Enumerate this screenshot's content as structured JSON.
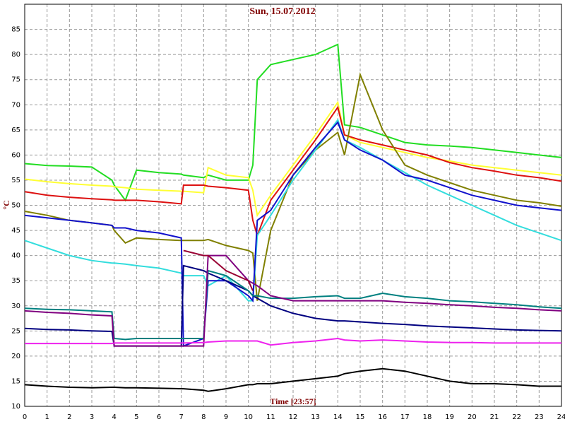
{
  "chart_data": {
    "type": "line",
    "title": "Sun, 15.07.2012",
    "x_label": "Time [23:57]",
    "y_label": "°C",
    "x": [
      0,
      1,
      2,
      3,
      3.9,
      4,
      4.5,
      5,
      6,
      7,
      7.1,
      8,
      8.2,
      9,
      10,
      10.2,
      10.4,
      11,
      12,
      13,
      14,
      14.3,
      15,
      16,
      17,
      18,
      19,
      20,
      21,
      22,
      23,
      24
    ],
    "xlim": [
      0,
      24
    ],
    "xticks": [
      0,
      1,
      2,
      3,
      4,
      5,
      6,
      7,
      8,
      9,
      10,
      11,
      12,
      13,
      14,
      15,
      16,
      17,
      18,
      19,
      20,
      21,
      22,
      23,
      24
    ],
    "ylim": [
      10,
      90
    ],
    "yticks": [
      10,
      15,
      20,
      25,
      30,
      35,
      40,
      45,
      50,
      55,
      60,
      65,
      70,
      75,
      80,
      85
    ],
    "grid": true,
    "series": [
      {
        "color": "#22dd22",
        "values": [
          58.3,
          57.9,
          57.8,
          57.6,
          55,
          54,
          51,
          57,
          56.5,
          56.2,
          56,
          55.5,
          56,
          55,
          55,
          58,
          75,
          78,
          79,
          80,
          82,
          66,
          65.5,
          64,
          62.5,
          62,
          61.8,
          61.5,
          61,
          60.5,
          60,
          59.5
        ]
      },
      {
        "color": "#ffff33",
        "values": [
          55.2,
          54.7,
          54.3,
          54,
          53.8,
          53.7,
          53.5,
          53.2,
          53,
          52.8,
          52.8,
          52.5,
          57.5,
          56,
          55.5,
          53,
          48,
          52,
          58,
          64,
          70.5,
          64,
          62.5,
          61.5,
          60.5,
          59.5,
          58.8,
          58,
          57.5,
          57,
          56.5,
          56
        ]
      },
      {
        "color": "#dd1111",
        "values": [
          52.7,
          52,
          51.6,
          51.3,
          51.1,
          51,
          51,
          51,
          50.7,
          50.3,
          54,
          54,
          53.8,
          53.5,
          53,
          47,
          44,
          51,
          57,
          63,
          69.5,
          64,
          63,
          62,
          61,
          60,
          58.5,
          57.5,
          56.8,
          56,
          55.5,
          54.8
        ]
      },
      {
        "color": "#808000",
        "values": [
          48.8,
          48,
          47,
          46.5,
          46,
          45,
          42.5,
          43.5,
          43.2,
          43,
          43,
          43,
          43.2,
          42,
          41,
          40.5,
          31,
          45,
          56,
          61,
          64.5,
          60,
          76,
          65,
          58,
          56,
          54.5,
          53,
          52,
          51,
          50.5,
          49.8
        ]
      },
      {
        "color": "#33dddd",
        "values": [
          43,
          41.5,
          40,
          39,
          38.5,
          38.5,
          38.3,
          38,
          37.5,
          36.5,
          36,
          36,
          34,
          36,
          31,
          31,
          44,
          48,
          55,
          61,
          67,
          63,
          61.5,
          59,
          56.5,
          54,
          52,
          50,
          48,
          46,
          44.5,
          43
        ]
      },
      {
        "color": "#1111cc",
        "values": [
          48,
          47.5,
          47,
          46.5,
          46,
          45.5,
          45.5,
          45,
          44.5,
          43.5,
          22,
          23.5,
          35,
          35,
          32,
          31,
          47,
          49,
          56,
          61.5,
          66.5,
          63,
          61,
          59,
          56,
          55,
          53.5,
          52,
          51,
          50,
          49.5,
          49
        ]
      },
      {
        "color": "#000080",
        "values": [
          25.5,
          25.3,
          25.2,
          25,
          24.9,
          22,
          22,
          22,
          22,
          22,
          38,
          37,
          36.5,
          35,
          33,
          32,
          31.5,
          30,
          28.5,
          27.5,
          27,
          27,
          26.8,
          26.5,
          26.3,
          26,
          25.8,
          25.6,
          25.4,
          25.2,
          25.1,
          25
        ]
      },
      {
        "color": "#008080",
        "values": [
          29.5,
          29.3,
          29.2,
          29,
          28.8,
          23.5,
          23.3,
          23.5,
          23.5,
          23.5,
          23.5,
          23.5,
          37,
          36,
          33,
          32,
          32,
          31.5,
          31.5,
          31.8,
          32,
          31.5,
          31.5,
          32.5,
          31.8,
          31.5,
          31,
          30.8,
          30.5,
          30.2,
          29.8,
          29.5
        ]
      },
      {
        "color": "#800080",
        "values": [
          29,
          28.7,
          28.5,
          28.2,
          28,
          22,
          22,
          22,
          22,
          22,
          22,
          22,
          40,
          40,
          35,
          34.5,
          34,
          32,
          31,
          31,
          31,
          31,
          31,
          31,
          30.7,
          30.5,
          30.2,
          30,
          29.7,
          29.5,
          29.2,
          29
        ]
      },
      {
        "color": "#990033",
        "values": [
          null,
          null,
          null,
          null,
          null,
          null,
          null,
          null,
          null,
          null,
          41,
          40,
          40,
          37,
          35,
          33,
          null,
          null,
          null,
          null,
          null,
          null,
          null,
          null,
          null,
          null,
          null,
          null,
          null,
          null,
          null,
          null
        ]
      },
      {
        "color": "#ee22ee",
        "values": [
          22.5,
          22.5,
          22.5,
          22.5,
          22.5,
          22.6,
          22.6,
          22.6,
          22.6,
          22.6,
          22.6,
          22.7,
          22.8,
          23,
          23,
          23,
          23,
          22.2,
          22.7,
          23,
          23.5,
          23.2,
          23,
          23.2,
          23,
          22.8,
          22.7,
          22.7,
          22.6,
          22.6,
          22.6,
          22.6
        ]
      },
      {
        "color": "#000000",
        "values": [
          14.3,
          14,
          13.8,
          13.7,
          13.8,
          13.8,
          13.7,
          13.7,
          13.6,
          13.5,
          13.5,
          13.2,
          13,
          13.5,
          14.3,
          14.3,
          14.5,
          14.5,
          15,
          15.5,
          16,
          16.5,
          17,
          17.5,
          17,
          16,
          15,
          14.5,
          14.5,
          14.3,
          14,
          14
        ]
      }
    ]
  }
}
